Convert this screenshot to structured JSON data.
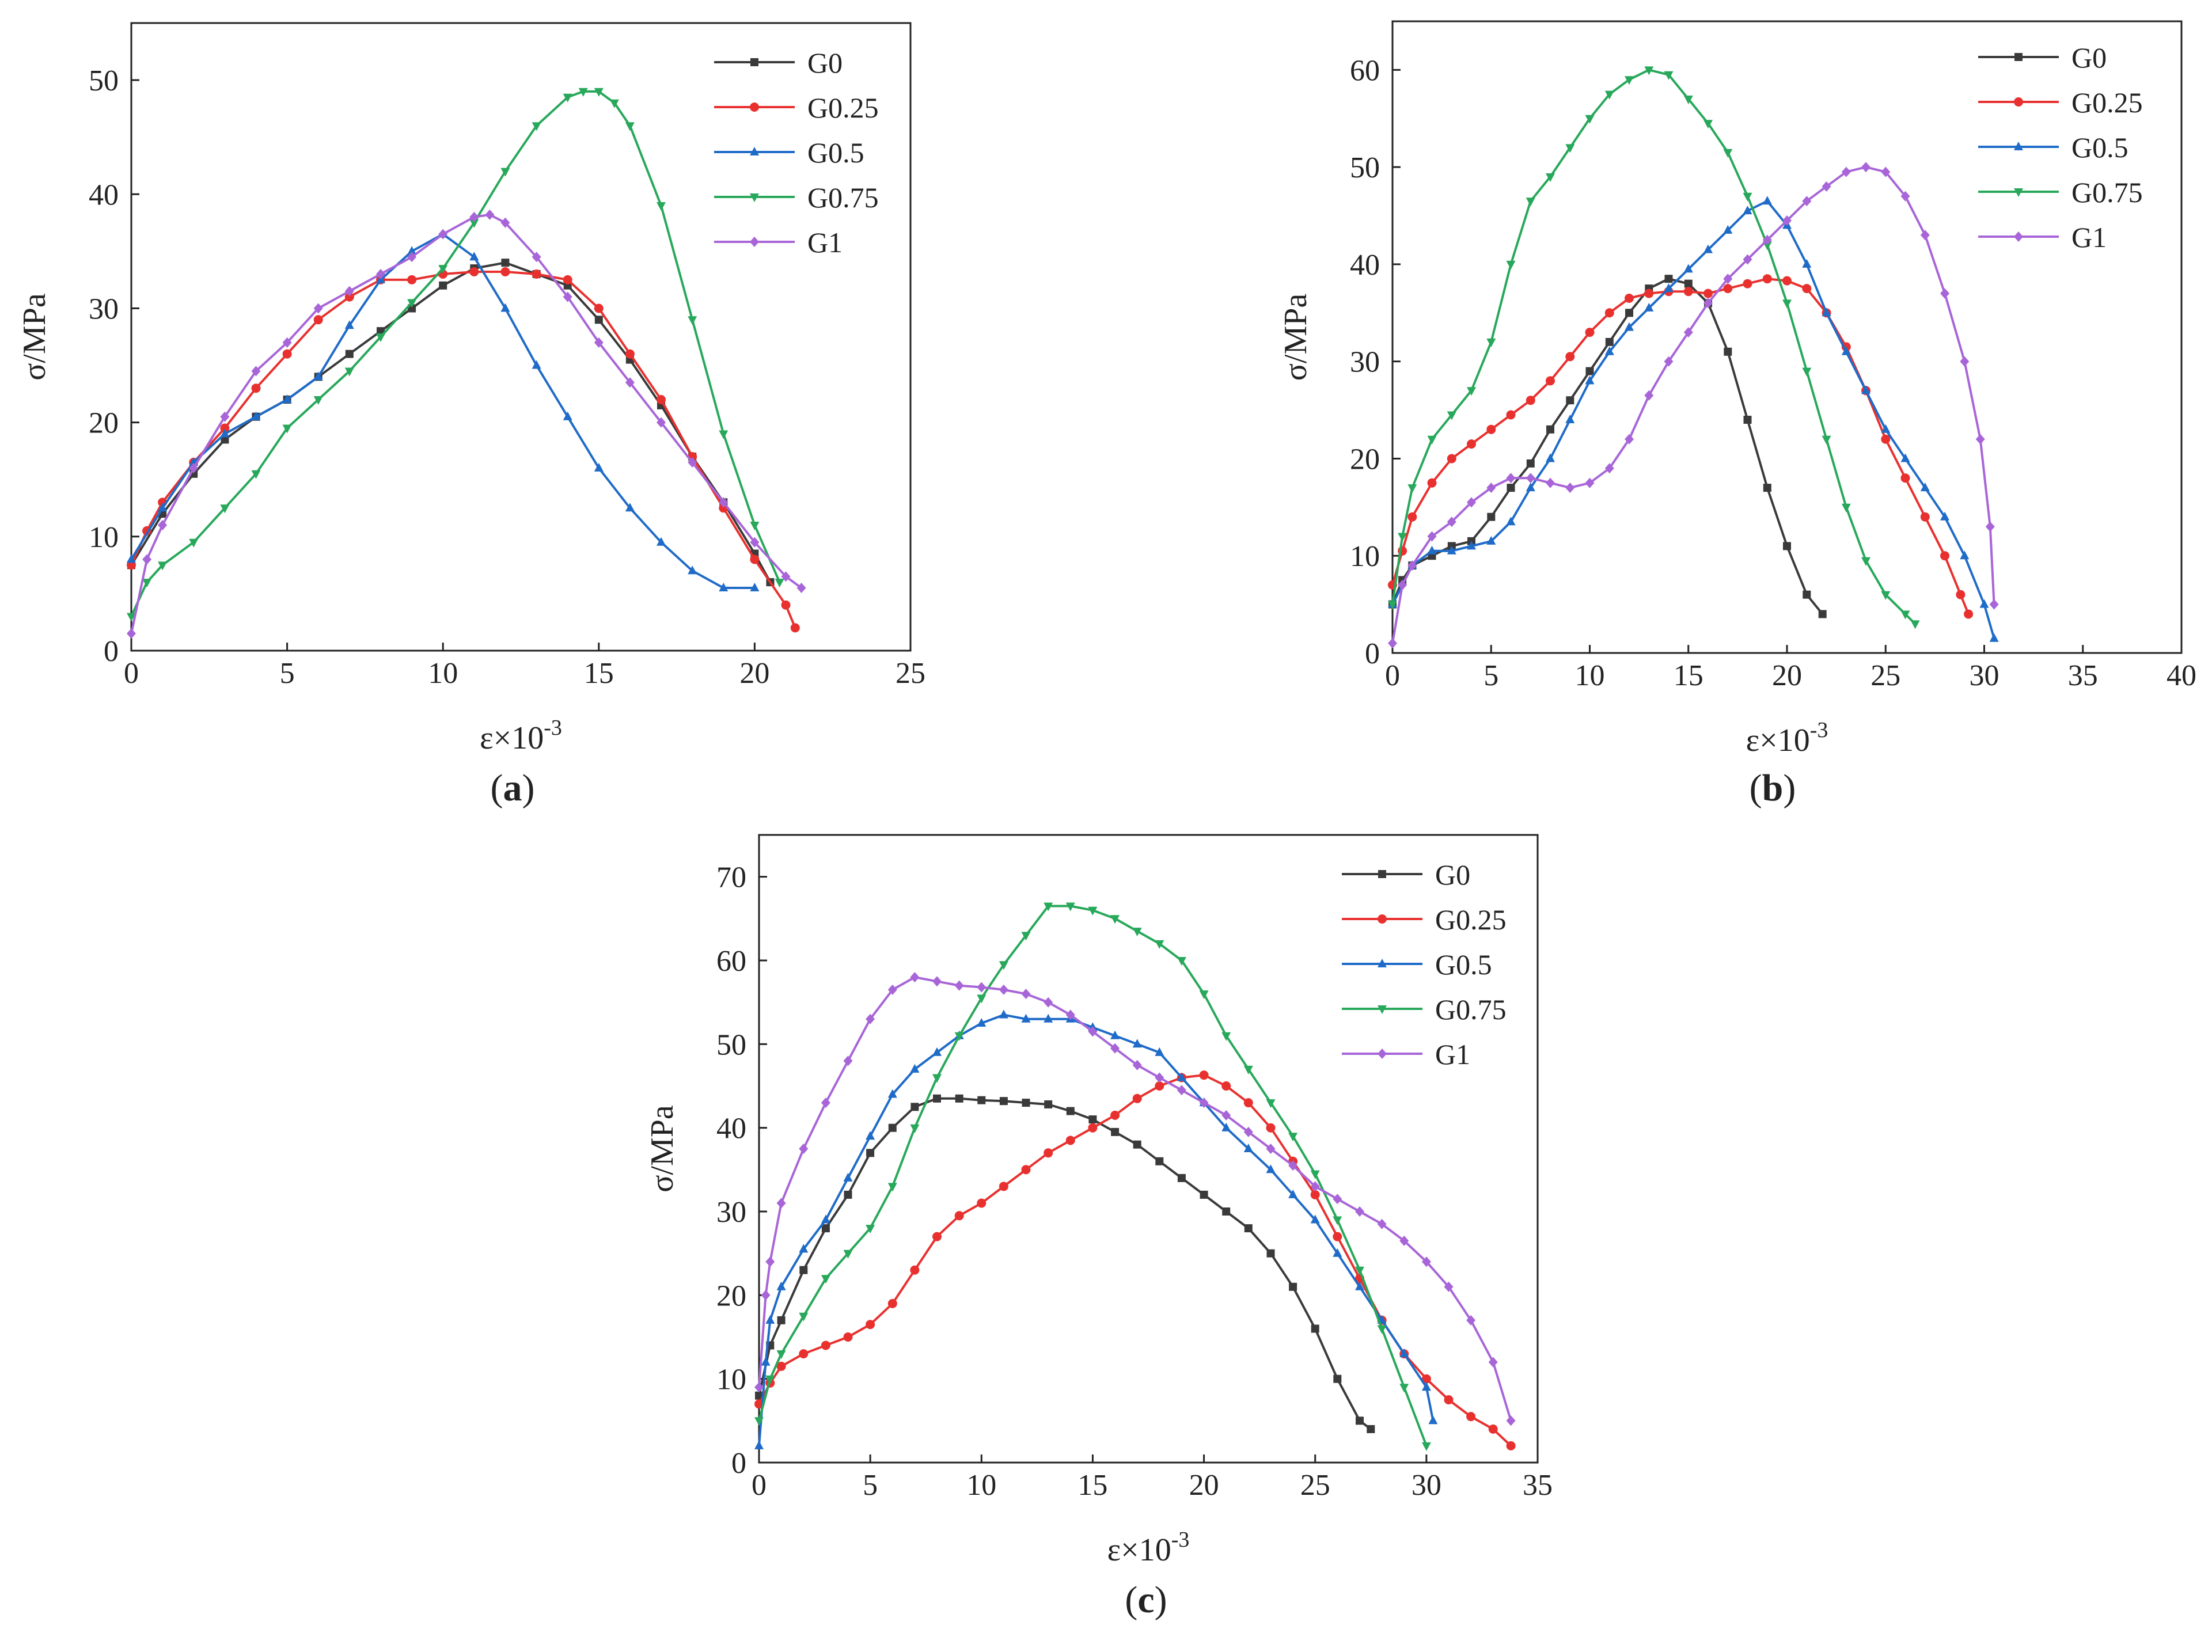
{
  "series_styles": [
    {
      "name": "G0",
      "color": "#3a3a3a",
      "marker": "square"
    },
    {
      "name": "G0.25",
      "color": "#e8312f",
      "marker": "circle"
    },
    {
      "name": "G0.5",
      "color": "#1f6bc8",
      "marker": "triangle-up"
    },
    {
      "name": "G0.75",
      "color": "#27a85a",
      "marker": "triangle-down"
    },
    {
      "name": "G1",
      "color": "#a865d8",
      "marker": "diamond"
    }
  ],
  "chart_data": [
    {
      "type": "line",
      "panel_label": "a",
      "xlabel": "ε×10",
      "xlabel_sup": "-3",
      "ylabel": "σ/MPa",
      "xlim": [
        0,
        25
      ],
      "ylim": [
        0,
        55
      ],
      "xticks": [
        "0",
        "5",
        "10",
        "15",
        "20",
        "25"
      ],
      "yticks": [
        "0",
        "10",
        "20",
        "30",
        "40",
        "50"
      ],
      "legend": "top-right",
      "series": [
        {
          "name": "G0",
          "x": [
            0,
            1,
            2,
            3,
            4,
            5,
            6,
            7,
            8,
            9,
            10,
            11,
            12,
            13,
            14,
            15,
            16,
            17,
            18,
            19,
            20,
            20.5
          ],
          "y": [
            7.5,
            12,
            15.5,
            18.5,
            20.5,
            22,
            24,
            26,
            28,
            30,
            32,
            33.5,
            34,
            33,
            32,
            29,
            25.5,
            21.5,
            17,
            13,
            8.5,
            6
          ]
        },
        {
          "name": "G0.25",
          "x": [
            0,
            0.5,
            1,
            2,
            3,
            4,
            5,
            6,
            7,
            8,
            9,
            10,
            11,
            12,
            13,
            14,
            15,
            16,
            17,
            18,
            19,
            20,
            21,
            21.3
          ],
          "y": [
            7.5,
            10.5,
            13,
            16.5,
            19.5,
            23,
            26,
            29,
            31,
            32.5,
            32.5,
            33,
            33.2,
            33.2,
            33,
            32.5,
            30,
            26,
            22,
            17,
            12.5,
            8,
            4,
            2
          ]
        },
        {
          "name": "G0.5",
          "x": [
            0,
            1,
            2,
            3,
            4,
            5,
            6,
            7,
            8,
            9,
            10,
            11,
            12,
            13,
            14,
            15,
            16,
            17,
            18,
            19,
            20
          ],
          "y": [
            8,
            12.5,
            16.5,
            19,
            20.5,
            22,
            24,
            28.5,
            32.5,
            35,
            36.5,
            34.5,
            30,
            25,
            20.5,
            16,
            12.5,
            9.5,
            7,
            5.5,
            5.5
          ]
        },
        {
          "name": "G0.75",
          "x": [
            0,
            0.5,
            1,
            2,
            3,
            4,
            5,
            6,
            7,
            8,
            9,
            10,
            11,
            12,
            13,
            14,
            14.5,
            15,
            15.5,
            16,
            17,
            18,
            19,
            20,
            20.8
          ],
          "y": [
            3,
            6,
            7.5,
            9.5,
            12.5,
            15.5,
            19.5,
            22,
            24.5,
            27.5,
            30.5,
            33.5,
            37.5,
            42,
            46,
            48.5,
            49,
            49,
            48,
            46,
            39,
            29,
            19,
            11,
            6
          ]
        },
        {
          "name": "G1",
          "x": [
            0,
            0.5,
            1,
            2,
            3,
            4,
            5,
            6,
            7,
            8,
            9,
            10,
            11,
            11.5,
            12,
            13,
            14,
            15,
            16,
            17,
            18,
            19,
            20,
            21,
            21.5
          ],
          "y": [
            1.5,
            8,
            11,
            16,
            20.5,
            24.5,
            27,
            30,
            31.5,
            33,
            34.5,
            36.5,
            38,
            38.2,
            37.5,
            34.5,
            31,
            27,
            23.5,
            20,
            16.5,
            13,
            9.5,
            6.5,
            5.5
          ]
        }
      ]
    },
    {
      "type": "line",
      "panel_label": "b",
      "xlabel": "ε×10",
      "xlabel_sup": "-3",
      "ylabel": "σ/MPa",
      "xlim": [
        0,
        40
      ],
      "ylim": [
        0,
        65
      ],
      "xticks": [
        "0",
        "5",
        "10",
        "15",
        "20",
        "25",
        "30",
        "35",
        "40"
      ],
      "yticks": [
        "0",
        "10",
        "20",
        "30",
        "40",
        "50",
        "60"
      ],
      "legend": "top-right",
      "series": [
        {
          "name": "G0",
          "x": [
            0,
            0.5,
            1,
            2,
            3,
            4,
            5,
            6,
            7,
            8,
            9,
            10,
            11,
            12,
            13,
            14,
            15,
            16,
            17,
            18,
            19,
            20,
            21,
            21.8
          ],
          "y": [
            5,
            7.5,
            9,
            10,
            11,
            11.5,
            14,
            17,
            19.5,
            23,
            26,
            29,
            32,
            35,
            37.5,
            38.5,
            38,
            36,
            31,
            24,
            17,
            11,
            6,
            4
          ]
        },
        {
          "name": "G0.25",
          "x": [
            0,
            0.5,
            1,
            2,
            3,
            4,
            5,
            6,
            7,
            8,
            9,
            10,
            11,
            12,
            13,
            14,
            15,
            16,
            17,
            18,
            19,
            20,
            21,
            22,
            23,
            24,
            25,
            26,
            27,
            28,
            28.8,
            29.2
          ],
          "y": [
            7,
            10.5,
            14,
            17.5,
            20,
            21.5,
            23,
            24.5,
            26,
            28,
            30.5,
            33,
            35,
            36.5,
            37,
            37.2,
            37.2,
            37,
            37.5,
            38,
            38.5,
            38.3,
            37.5,
            35,
            31.5,
            27,
            22,
            18,
            14,
            10,
            6,
            4
          ]
        },
        {
          "name": "G0.5",
          "x": [
            0,
            1,
            2,
            3,
            4,
            5,
            6,
            7,
            8,
            9,
            10,
            11,
            12,
            13,
            14,
            15,
            16,
            17,
            18,
            19,
            20,
            21,
            22,
            23,
            24,
            25,
            26,
            27,
            28,
            29,
            30,
            30.5
          ],
          "y": [
            5,
            9,
            10.5,
            10.5,
            11,
            11.5,
            13.5,
            17,
            20,
            24,
            28,
            31,
            33.5,
            35.5,
            37.5,
            39.5,
            41.5,
            43.5,
            45.5,
            46.5,
            44,
            40,
            35,
            31,
            27,
            23,
            20,
            17,
            14,
            10,
            5,
            1.5
          ]
        },
        {
          "name": "G0.75",
          "x": [
            0,
            0.5,
            1,
            2,
            3,
            4,
            5,
            6,
            7,
            8,
            9,
            10,
            11,
            12,
            13,
            14,
            15,
            16,
            17,
            18,
            19,
            20,
            21,
            22,
            23,
            24,
            25,
            26,
            26.5
          ],
          "y": [
            5,
            12,
            17,
            22,
            24.5,
            27,
            32,
            40,
            46.5,
            49,
            52,
            55,
            57.5,
            59,
            60,
            59.5,
            57,
            54.5,
            51.5,
            47,
            42,
            36,
            29,
            22,
            15,
            9.5,
            6,
            4,
            3
          ]
        },
        {
          "name": "G1",
          "x": [
            0,
            0.5,
            1,
            2,
            3,
            4,
            5,
            6,
            7,
            8,
            9,
            10,
            11,
            12,
            13,
            14,
            15,
            16,
            17,
            18,
            19,
            20,
            21,
            22,
            23,
            24,
            25,
            26,
            27,
            28,
            29,
            29.8,
            30.3,
            30.5
          ],
          "y": [
            1,
            7,
            9,
            12,
            13.5,
            15.5,
            17,
            18,
            18,
            17.5,
            17,
            17.5,
            19,
            22,
            26.5,
            30,
            33,
            36,
            38.5,
            40.5,
            42.5,
            44.5,
            46.5,
            48,
            49.5,
            50,
            49.5,
            47,
            43,
            37,
            30,
            22,
            13,
            5
          ]
        }
      ]
    },
    {
      "type": "line",
      "panel_label": "c",
      "xlabel": "ε×10",
      "xlabel_sup": "-3",
      "ylabel": "σ/MPa",
      "xlim": [
        0,
        35
      ],
      "ylim": [
        0,
        75
      ],
      "xticks": [
        "0",
        "5",
        "10",
        "15",
        "20",
        "25",
        "30",
        "35"
      ],
      "yticks": [
        "0",
        "10",
        "20",
        "30",
        "40",
        "50",
        "60",
        "70"
      ],
      "legend": "top-right",
      "series": [
        {
          "name": "G0",
          "x": [
            0,
            0.5,
            1,
            2,
            3,
            4,
            5,
            6,
            7,
            8,
            9,
            10,
            11,
            12,
            13,
            14,
            15,
            16,
            17,
            18,
            19,
            20,
            21,
            22,
            23,
            24,
            25,
            26,
            27,
            27.5
          ],
          "y": [
            8,
            14,
            17,
            23,
            28,
            32,
            37,
            40,
            42.5,
            43.5,
            43.5,
            43.3,
            43.2,
            43,
            42.8,
            42,
            41,
            39.5,
            38,
            36,
            34,
            32,
            30,
            28,
            25,
            21,
            16,
            10,
            5,
            4
          ]
        },
        {
          "name": "G0.25",
          "x": [
            0,
            0.5,
            1,
            2,
            3,
            4,
            5,
            6,
            7,
            8,
            9,
            10,
            11,
            12,
            13,
            14,
            15,
            16,
            17,
            18,
            19,
            20,
            21,
            22,
            23,
            24,
            25,
            26,
            27,
            28,
            29,
            30,
            31,
            32,
            33,
            33.8
          ],
          "y": [
            7,
            9.5,
            11.5,
            13,
            14,
            15,
            16.5,
            19,
            23,
            27,
            29.5,
            31,
            33,
            35,
            37,
            38.5,
            40,
            41.5,
            43.5,
            45,
            46,
            46.3,
            45,
            43,
            40,
            36,
            32,
            27,
            22,
            17,
            13,
            10,
            7.5,
            5.5,
            4,
            2
          ]
        },
        {
          "name": "G0.5",
          "x": [
            0,
            0.3,
            0.5,
            1,
            2,
            3,
            4,
            5,
            6,
            7,
            8,
            9,
            10,
            11,
            12,
            13,
            14,
            15,
            16,
            17,
            18,
            19,
            20,
            21,
            22,
            23,
            24,
            25,
            26,
            27,
            28,
            29,
            30,
            30.3
          ],
          "y": [
            2,
            12,
            17,
            21,
            25.5,
            29,
            34,
            39,
            44,
            47,
            49,
            51,
            52.5,
            53.5,
            53,
            53,
            53,
            52,
            51,
            50,
            49,
            46,
            43,
            40,
            37.5,
            35,
            32,
            29,
            25,
            21,
            17,
            13,
            9,
            5
          ]
        },
        {
          "name": "G0.75",
          "x": [
            0,
            0.5,
            1,
            2,
            3,
            4,
            5,
            6,
            7,
            8,
            9,
            10,
            11,
            12,
            13,
            14,
            15,
            16,
            17,
            18,
            19,
            20,
            21,
            22,
            23,
            24,
            25,
            26,
            27,
            28,
            29,
            30
          ],
          "y": [
            5,
            10,
            13,
            17.5,
            22,
            25,
            28,
            33,
            40,
            46,
            51,
            55.5,
            59.5,
            63,
            66.5,
            66.5,
            66,
            65,
            63.5,
            62,
            60,
            56,
            51,
            47,
            43,
            39,
            34.5,
            29,
            23,
            16,
            9,
            2
          ]
        },
        {
          "name": "G1",
          "x": [
            0,
            0.3,
            0.5,
            1,
            2,
            3,
            4,
            5,
            6,
            7,
            8,
            9,
            10,
            11,
            12,
            13,
            14,
            15,
            16,
            17,
            18,
            19,
            20,
            21,
            22,
            23,
            24,
            25,
            26,
            27,
            28,
            29,
            30,
            31,
            32,
            33,
            33.8
          ],
          "y": [
            9,
            20,
            24,
            31,
            37.5,
            43,
            48,
            53,
            56.5,
            58,
            57.5,
            57,
            56.8,
            56.5,
            56,
            55,
            53.5,
            51.5,
            49.5,
            47.5,
            46,
            44.5,
            43,
            41.5,
            39.5,
            37.5,
            35.5,
            33,
            31.5,
            30,
            28.5,
            26.5,
            24,
            21,
            17,
            12,
            5
          ]
        }
      ]
    }
  ]
}
